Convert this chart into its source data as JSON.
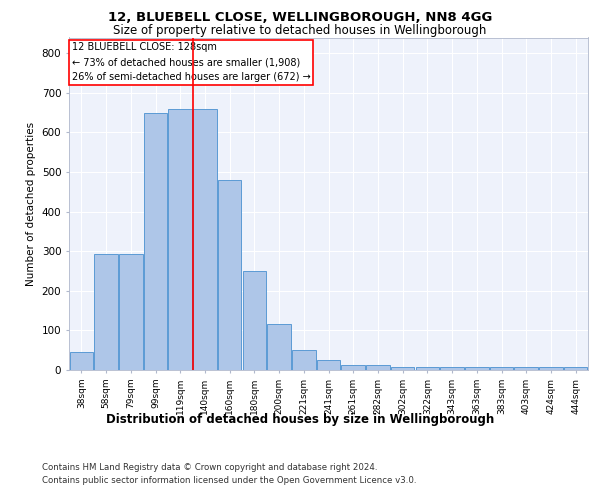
{
  "title1": "12, BLUEBELL CLOSE, WELLINGBOROUGH, NN8 4GG",
  "title2": "Size of property relative to detached houses in Wellingborough",
  "xlabel": "Distribution of detached houses by size in Wellingborough",
  "ylabel": "Number of detached properties",
  "bar_color": "#aec6e8",
  "bar_edge_color": "#5b9bd5",
  "categories": [
    "38sqm",
    "58sqm",
    "79sqm",
    "99sqm",
    "119sqm",
    "140sqm",
    "160sqm",
    "180sqm",
    "200sqm",
    "221sqm",
    "241sqm",
    "261sqm",
    "282sqm",
    "302sqm",
    "322sqm",
    "343sqm",
    "363sqm",
    "383sqm",
    "403sqm",
    "424sqm",
    "444sqm"
  ],
  "values": [
    45,
    293,
    293,
    650,
    660,
    660,
    480,
    250,
    115,
    50,
    25,
    13,
    13,
    8,
    8,
    8,
    8,
    8,
    8,
    8,
    8
  ],
  "red_line_x": 4.5,
  "annotation_text": "12 BLUEBELL CLOSE: 128sqm\n← 73% of detached houses are smaller (1,908)\n26% of semi-detached houses are larger (672) →",
  "ylim": [
    0,
    840
  ],
  "yticks": [
    0,
    100,
    200,
    300,
    400,
    500,
    600,
    700,
    800
  ],
  "background_color": "#eef2fb",
  "grid_color": "#ffffff",
  "footer1": "Contains HM Land Registry data © Crown copyright and database right 2024.",
  "footer2": "Contains public sector information licensed under the Open Government Licence v3.0."
}
